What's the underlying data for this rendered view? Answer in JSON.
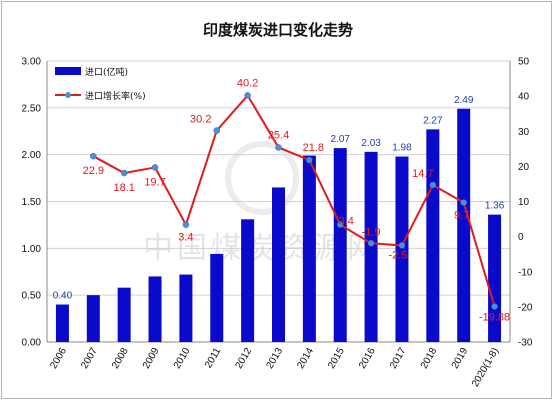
{
  "chart_data": {
    "type": "bar+line",
    "title": "印度煤炭进口变化走势",
    "categories": [
      "2006",
      "2007",
      "2008",
      "2009",
      "2010",
      "2011",
      "2012",
      "2013",
      "2014",
      "2015",
      "2016",
      "2017",
      "2018",
      "2019",
      "2020(1-8)"
    ],
    "series": [
      {
        "name": "进口(亿吨)",
        "type": "bar",
        "axis": "left",
        "color": "#0a0acb",
        "values": [
          0.4,
          0.5,
          0.58,
          0.7,
          0.72,
          0.94,
          1.31,
          1.65,
          1.99,
          2.07,
          2.03,
          1.98,
          2.27,
          2.49,
          1.36
        ],
        "data_labels": {
          "0": "0.40",
          "9": "2.07",
          "10": "2.03",
          "11": "1.98",
          "12": "2.27",
          "13": "2.49",
          "14": "1.36"
        }
      },
      {
        "name": "进口增长率(%)",
        "type": "line",
        "axis": "right",
        "color": "#e31a1c",
        "marker_color": "#4a90d9",
        "values": [
          null,
          22.9,
          18.1,
          19.7,
          3.4,
          30.2,
          40.2,
          25.4,
          21.8,
          3.4,
          -1.9,
          -2.5,
          14.7,
          9.7,
          -19.88
        ],
        "data_labels": {
          "1": "22.9",
          "2": "18.1",
          "3": "19.7",
          "4": "3.4",
          "5": "30.2",
          "6": "40.2",
          "7": "25.4",
          "8": "21.8",
          "9": "3.4",
          "10": "-1.9",
          "11": "-2.5",
          "12": "14.7",
          "13": "9.7",
          "14": "-19.88"
        }
      }
    ],
    "y_left": {
      "min": 0,
      "max": 3.0,
      "step": 0.5,
      "ticks": [
        "0.00",
        "0.50",
        "1.00",
        "1.50",
        "2.00",
        "2.50",
        "3.00"
      ]
    },
    "y_right": {
      "min": -30,
      "max": 50,
      "step": 10,
      "ticks": [
        "-30",
        "-20",
        "-10",
        "0",
        "10",
        "20",
        "30",
        "40",
        "50"
      ]
    },
    "grid": "horizontal",
    "legend_position": "top-left",
    "watermark": "中国煤炭资源网"
  }
}
